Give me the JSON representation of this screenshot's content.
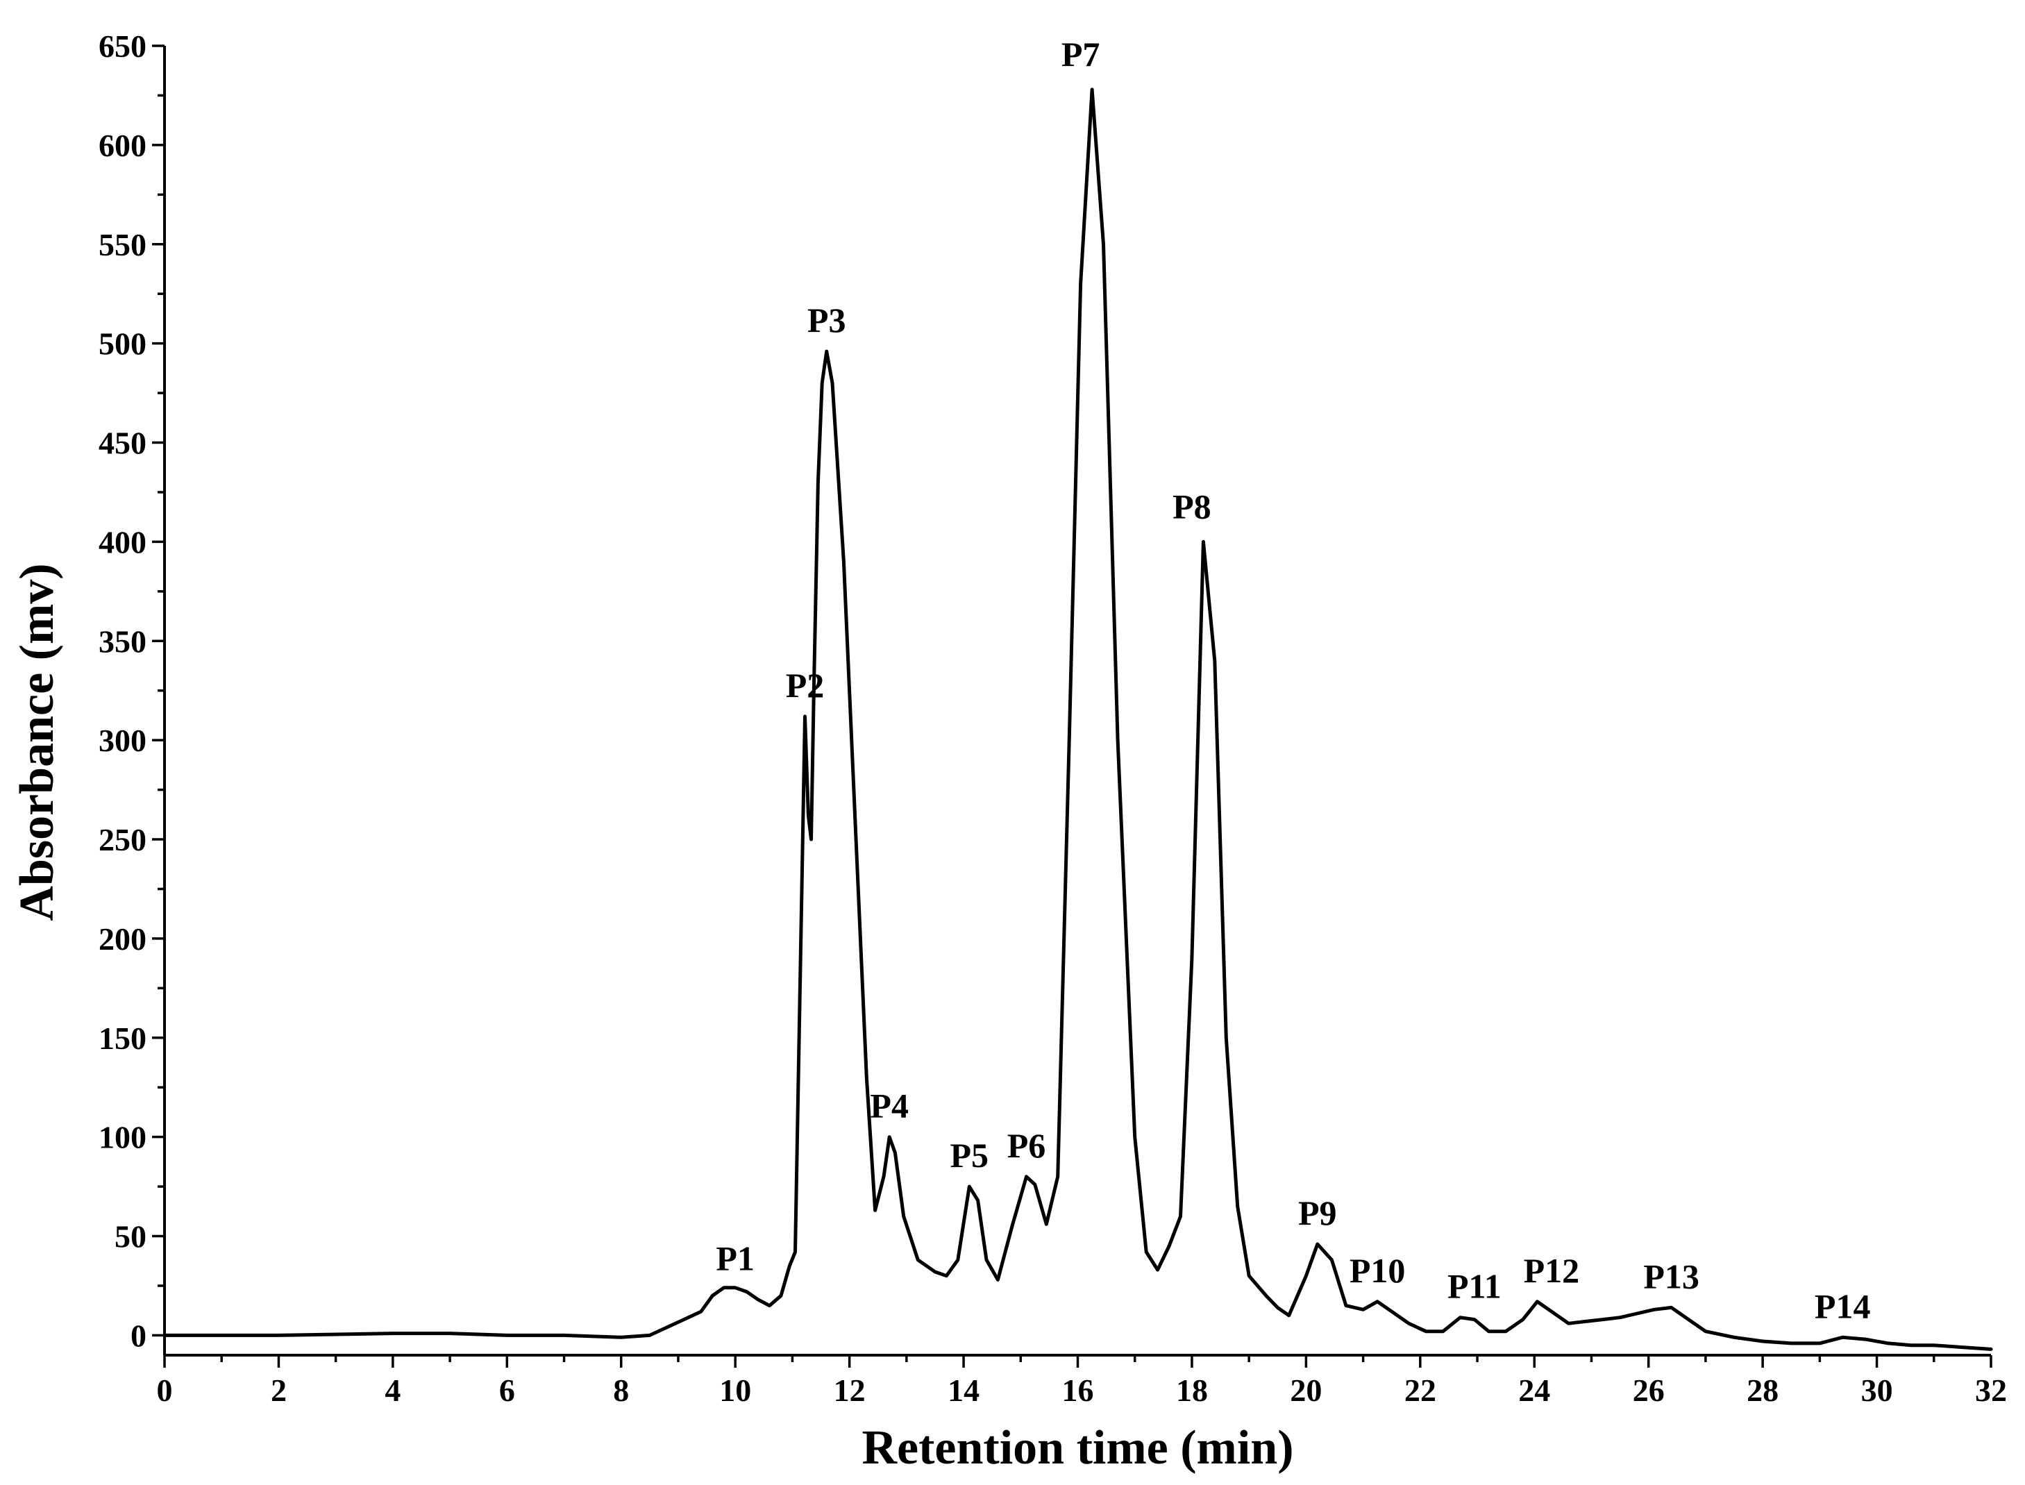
{
  "chart_data": {
    "type": "line",
    "xlabel": "Retention time (min)",
    "ylabel": "Absorbance (mv)",
    "xlim": [
      0,
      32
    ],
    "ylim": [
      -10,
      650
    ],
    "xticks": [
      0,
      2,
      4,
      6,
      8,
      10,
      12,
      14,
      16,
      18,
      20,
      22,
      24,
      26,
      28,
      30,
      32
    ],
    "yticks": [
      0,
      50,
      100,
      150,
      200,
      250,
      300,
      350,
      400,
      450,
      500,
      550,
      600,
      650
    ],
    "grid": false,
    "color": "#000000",
    "series": [
      {
        "x": [
          0,
          2,
          4,
          5,
          6,
          7,
          8,
          8.5,
          8.8,
          9.1,
          9.4,
          9.6,
          9.8,
          10.0,
          10.2,
          10.4,
          10.6,
          10.8,
          10.95,
          11.05,
          11.15,
          11.22,
          11.28,
          11.33,
          11.38,
          11.45,
          11.52,
          11.6,
          11.7,
          11.9,
          12.1,
          12.3,
          12.45,
          12.6,
          12.7,
          12.8,
          12.95,
          13.2,
          13.5,
          13.7,
          13.9,
          14.1,
          14.25,
          14.4,
          14.6,
          14.85,
          15.1,
          15.25,
          15.45,
          15.65,
          15.85,
          16.05,
          16.25,
          16.45,
          16.7,
          17.0,
          17.2,
          17.4,
          17.6,
          17.8,
          18.0,
          18.2,
          18.4,
          18.6,
          18.8,
          19.0,
          19.3,
          19.5,
          19.7,
          20.0,
          20.2,
          20.45,
          20.7,
          21.0,
          21.25,
          21.5,
          21.8,
          22.1,
          22.4,
          22.7,
          22.95,
          23.2,
          23.5,
          23.8,
          24.05,
          24.3,
          24.6,
          24.9,
          25.2,
          25.5,
          25.8,
          26.1,
          26.4,
          26.7,
          27.0,
          27.5,
          28.0,
          28.5,
          29.0,
          29.4,
          29.8,
          30.2,
          30.6,
          31.0,
          31.5,
          32.0
        ],
        "y": [
          0,
          0,
          1,
          1,
          0,
          0,
          -1,
          0,
          4,
          8,
          12,
          20,
          24,
          24,
          22,
          18,
          15,
          20,
          35,
          42,
          200,
          312,
          262,
          250,
          330,
          430,
          480,
          496,
          480,
          390,
          260,
          130,
          63,
          80,
          100,
          92,
          60,
          38,
          32,
          30,
          38,
          75,
          68,
          38,
          28,
          55,
          80,
          76,
          56,
          80,
          300,
          530,
          628,
          550,
          300,
          100,
          42,
          33,
          45,
          60,
          190,
          400,
          340,
          150,
          65,
          30,
          20,
          14,
          10,
          30,
          46,
          38,
          15,
          13,
          17,
          12,
          6,
          2,
          2,
          9,
          8,
          2,
          2,
          8,
          17,
          12,
          6,
          7,
          8,
          9,
          11,
          13,
          14,
          8,
          2,
          -1,
          -3,
          -4,
          -4,
          -1,
          -2,
          -4,
          -5,
          -5,
          -6,
          -7
        ]
      }
    ],
    "annotations": [
      {
        "text": "P1",
        "x": 10.0,
        "y": 23
      },
      {
        "text": "P2",
        "x": 11.22,
        "y": 312
      },
      {
        "text": "P3",
        "x": 11.6,
        "y": 496
      },
      {
        "text": "P4",
        "x": 12.7,
        "y": 100
      },
      {
        "text": "P5",
        "x": 14.1,
        "y": 75
      },
      {
        "text": "P6",
        "x": 15.1,
        "y": 80
      },
      {
        "text": "P7",
        "x": 16.05,
        "y": 630
      },
      {
        "text": "P8",
        "x": 18.0,
        "y": 402
      },
      {
        "text": "P9",
        "x": 20.2,
        "y": 46
      },
      {
        "text": "P10",
        "x": 21.25,
        "y": 17
      },
      {
        "text": "P11",
        "x": 22.95,
        "y": 9
      },
      {
        "text": "P12",
        "x": 24.3,
        "y": 17
      },
      {
        "text": "P13",
        "x": 26.4,
        "y": 14
      },
      {
        "text": "P14",
        "x": 29.4,
        "y": -1
      }
    ]
  }
}
